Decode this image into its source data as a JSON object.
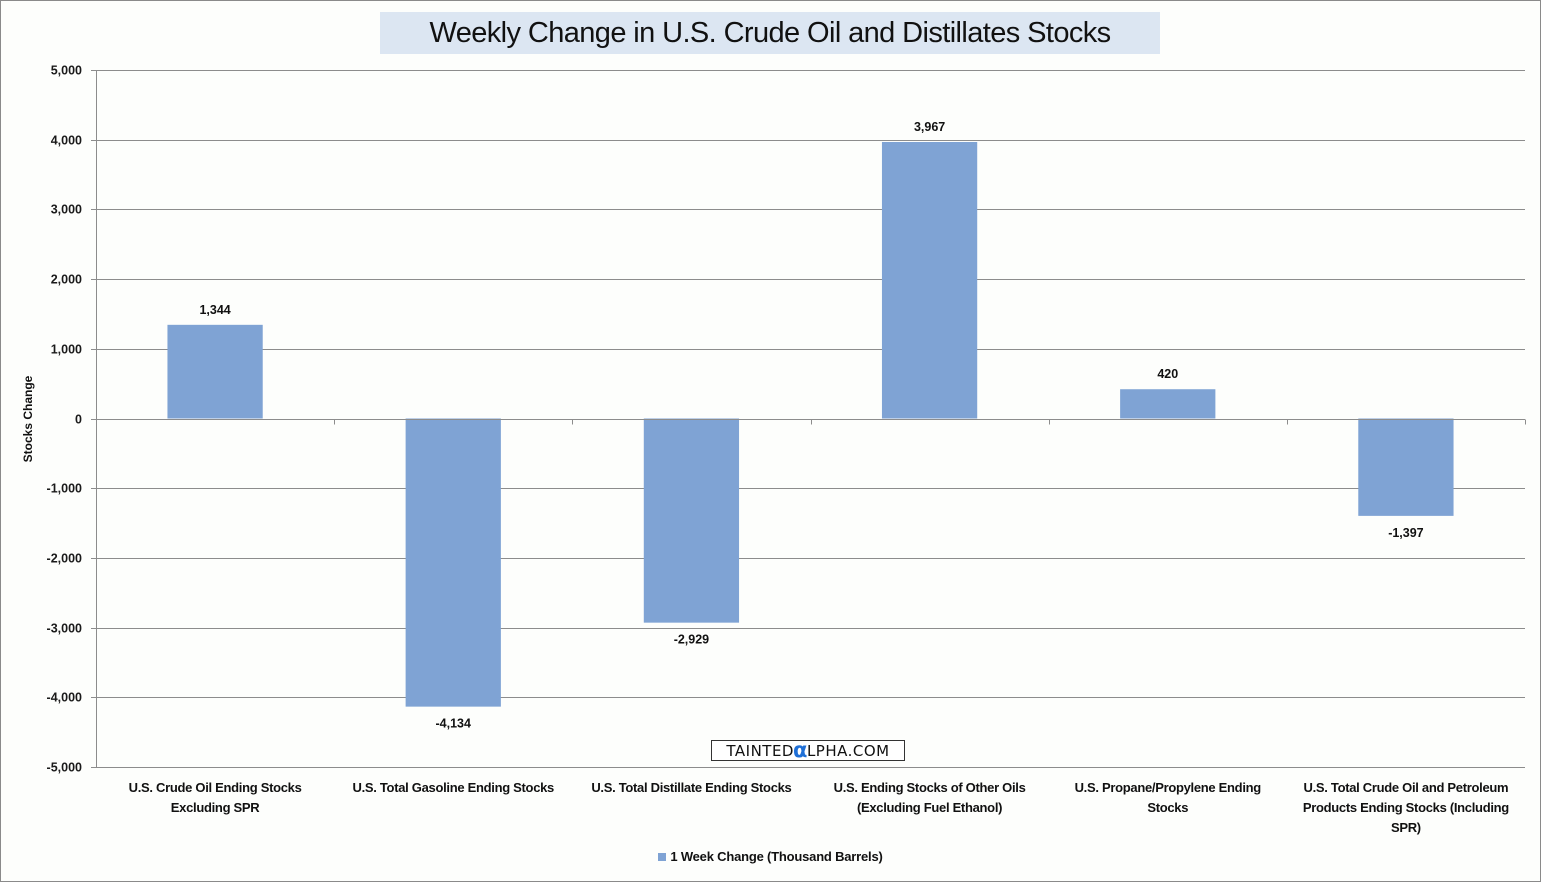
{
  "chart_data": {
    "type": "bar",
    "title": "Weekly Change in U.S. Crude Oil and Distillates Stocks",
    "xlabel": "",
    "ylabel": "Stocks Change",
    "ylim": [
      -5000,
      5000
    ],
    "yticks": [
      5000,
      4000,
      3000,
      2000,
      1000,
      0,
      -1000,
      -2000,
      -3000,
      -4000,
      -5000
    ],
    "ytick_labels": [
      "5,000",
      "4,000",
      "3,000",
      "2,000",
      "1,000",
      "0",
      "-1,000",
      "-2,000",
      "-3,000",
      "-4,000",
      "-5,000"
    ],
    "grid": true,
    "legend_position": "bottom",
    "categories": [
      "U.S. Crude Oil Ending Stocks Excluding SPR",
      "U.S. Total Gasoline Ending Stocks",
      "U.S. Total Distillate Ending Stocks",
      "U.S. Ending Stocks of Other Oils (Excluding Fuel Ethanol)",
      "U.S. Propane/Propylene Ending Stocks",
      "U.S. Total Crude Oil and Petroleum Products Ending Stocks (Including SPR)"
    ],
    "series": [
      {
        "name": "1 Week Change (Thousand Barrels)",
        "color": "#7fa3d4",
        "values": [
          1344,
          -4134,
          -2929,
          3967,
          420,
          -1397
        ],
        "data_labels": [
          "1,344",
          "-4,134",
          "-2,929",
          "3,967",
          "420",
          "-1,397"
        ]
      }
    ]
  },
  "watermark": {
    "prefix": "TAINTED",
    "alpha": "α",
    "suffix": "LPHA.COM"
  },
  "colors": {
    "bar": "#7fa3d4",
    "title_bg": "#dce6f2",
    "gridline": "#8c8c8c",
    "alpha_accent": "#1f6fd6"
  }
}
